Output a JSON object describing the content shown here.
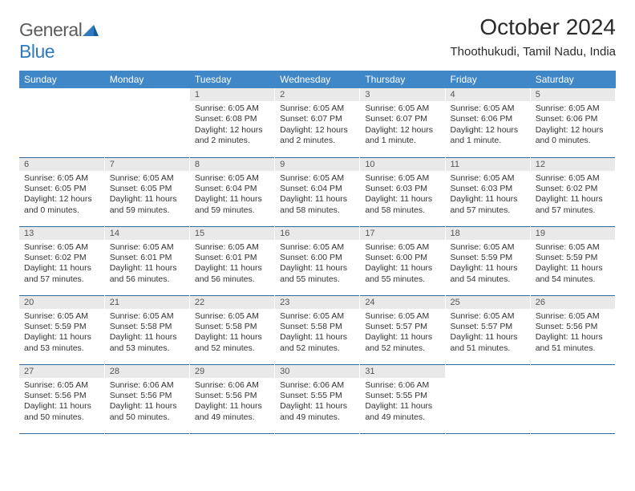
{
  "logo": {
    "part1": "General",
    "part2": "Blue"
  },
  "header": {
    "month_title": "October 2024",
    "location": "Thoothukudi, Tamil Nadu, India"
  },
  "colors": {
    "header_bg": "#3f87c7",
    "header_text": "#ffffff",
    "daynum_bg": "#e9e9e9",
    "row_divider": "#2f6a9c",
    "logo_accent": "#2f7ac0"
  },
  "weekdays": [
    "Sunday",
    "Monday",
    "Tuesday",
    "Wednesday",
    "Thursday",
    "Friday",
    "Saturday"
  ],
  "weeks": [
    [
      null,
      null,
      {
        "n": "1",
        "sr": "6:05 AM",
        "ss": "6:08 PM",
        "dl": "12 hours and 2 minutes."
      },
      {
        "n": "2",
        "sr": "6:05 AM",
        "ss": "6:07 PM",
        "dl": "12 hours and 2 minutes."
      },
      {
        "n": "3",
        "sr": "6:05 AM",
        "ss": "6:07 PM",
        "dl": "12 hours and 1 minute."
      },
      {
        "n": "4",
        "sr": "6:05 AM",
        "ss": "6:06 PM",
        "dl": "12 hours and 1 minute."
      },
      {
        "n": "5",
        "sr": "6:05 AM",
        "ss": "6:06 PM",
        "dl": "12 hours and 0 minutes."
      }
    ],
    [
      {
        "n": "6",
        "sr": "6:05 AM",
        "ss": "6:05 PM",
        "dl": "12 hours and 0 minutes."
      },
      {
        "n": "7",
        "sr": "6:05 AM",
        "ss": "6:05 PM",
        "dl": "11 hours and 59 minutes."
      },
      {
        "n": "8",
        "sr": "6:05 AM",
        "ss": "6:04 PM",
        "dl": "11 hours and 59 minutes."
      },
      {
        "n": "9",
        "sr": "6:05 AM",
        "ss": "6:04 PM",
        "dl": "11 hours and 58 minutes."
      },
      {
        "n": "10",
        "sr": "6:05 AM",
        "ss": "6:03 PM",
        "dl": "11 hours and 58 minutes."
      },
      {
        "n": "11",
        "sr": "6:05 AM",
        "ss": "6:03 PM",
        "dl": "11 hours and 57 minutes."
      },
      {
        "n": "12",
        "sr": "6:05 AM",
        "ss": "6:02 PM",
        "dl": "11 hours and 57 minutes."
      }
    ],
    [
      {
        "n": "13",
        "sr": "6:05 AM",
        "ss": "6:02 PM",
        "dl": "11 hours and 57 minutes."
      },
      {
        "n": "14",
        "sr": "6:05 AM",
        "ss": "6:01 PM",
        "dl": "11 hours and 56 minutes."
      },
      {
        "n": "15",
        "sr": "6:05 AM",
        "ss": "6:01 PM",
        "dl": "11 hours and 56 minutes."
      },
      {
        "n": "16",
        "sr": "6:05 AM",
        "ss": "6:00 PM",
        "dl": "11 hours and 55 minutes."
      },
      {
        "n": "17",
        "sr": "6:05 AM",
        "ss": "6:00 PM",
        "dl": "11 hours and 55 minutes."
      },
      {
        "n": "18",
        "sr": "6:05 AM",
        "ss": "5:59 PM",
        "dl": "11 hours and 54 minutes."
      },
      {
        "n": "19",
        "sr": "6:05 AM",
        "ss": "5:59 PM",
        "dl": "11 hours and 54 minutes."
      }
    ],
    [
      {
        "n": "20",
        "sr": "6:05 AM",
        "ss": "5:59 PM",
        "dl": "11 hours and 53 minutes."
      },
      {
        "n": "21",
        "sr": "6:05 AM",
        "ss": "5:58 PM",
        "dl": "11 hours and 53 minutes."
      },
      {
        "n": "22",
        "sr": "6:05 AM",
        "ss": "5:58 PM",
        "dl": "11 hours and 52 minutes."
      },
      {
        "n": "23",
        "sr": "6:05 AM",
        "ss": "5:58 PM",
        "dl": "11 hours and 52 minutes."
      },
      {
        "n": "24",
        "sr": "6:05 AM",
        "ss": "5:57 PM",
        "dl": "11 hours and 52 minutes."
      },
      {
        "n": "25",
        "sr": "6:05 AM",
        "ss": "5:57 PM",
        "dl": "11 hours and 51 minutes."
      },
      {
        "n": "26",
        "sr": "6:05 AM",
        "ss": "5:56 PM",
        "dl": "11 hours and 51 minutes."
      }
    ],
    [
      {
        "n": "27",
        "sr": "6:05 AM",
        "ss": "5:56 PM",
        "dl": "11 hours and 50 minutes."
      },
      {
        "n": "28",
        "sr": "6:06 AM",
        "ss": "5:56 PM",
        "dl": "11 hours and 50 minutes."
      },
      {
        "n": "29",
        "sr": "6:06 AM",
        "ss": "5:56 PM",
        "dl": "11 hours and 49 minutes."
      },
      {
        "n": "30",
        "sr": "6:06 AM",
        "ss": "5:55 PM",
        "dl": "11 hours and 49 minutes."
      },
      {
        "n": "31",
        "sr": "6:06 AM",
        "ss": "5:55 PM",
        "dl": "11 hours and 49 minutes."
      },
      null,
      null
    ]
  ],
  "labels": {
    "sunrise": "Sunrise:",
    "sunset": "Sunset:",
    "daylight": "Daylight:"
  }
}
